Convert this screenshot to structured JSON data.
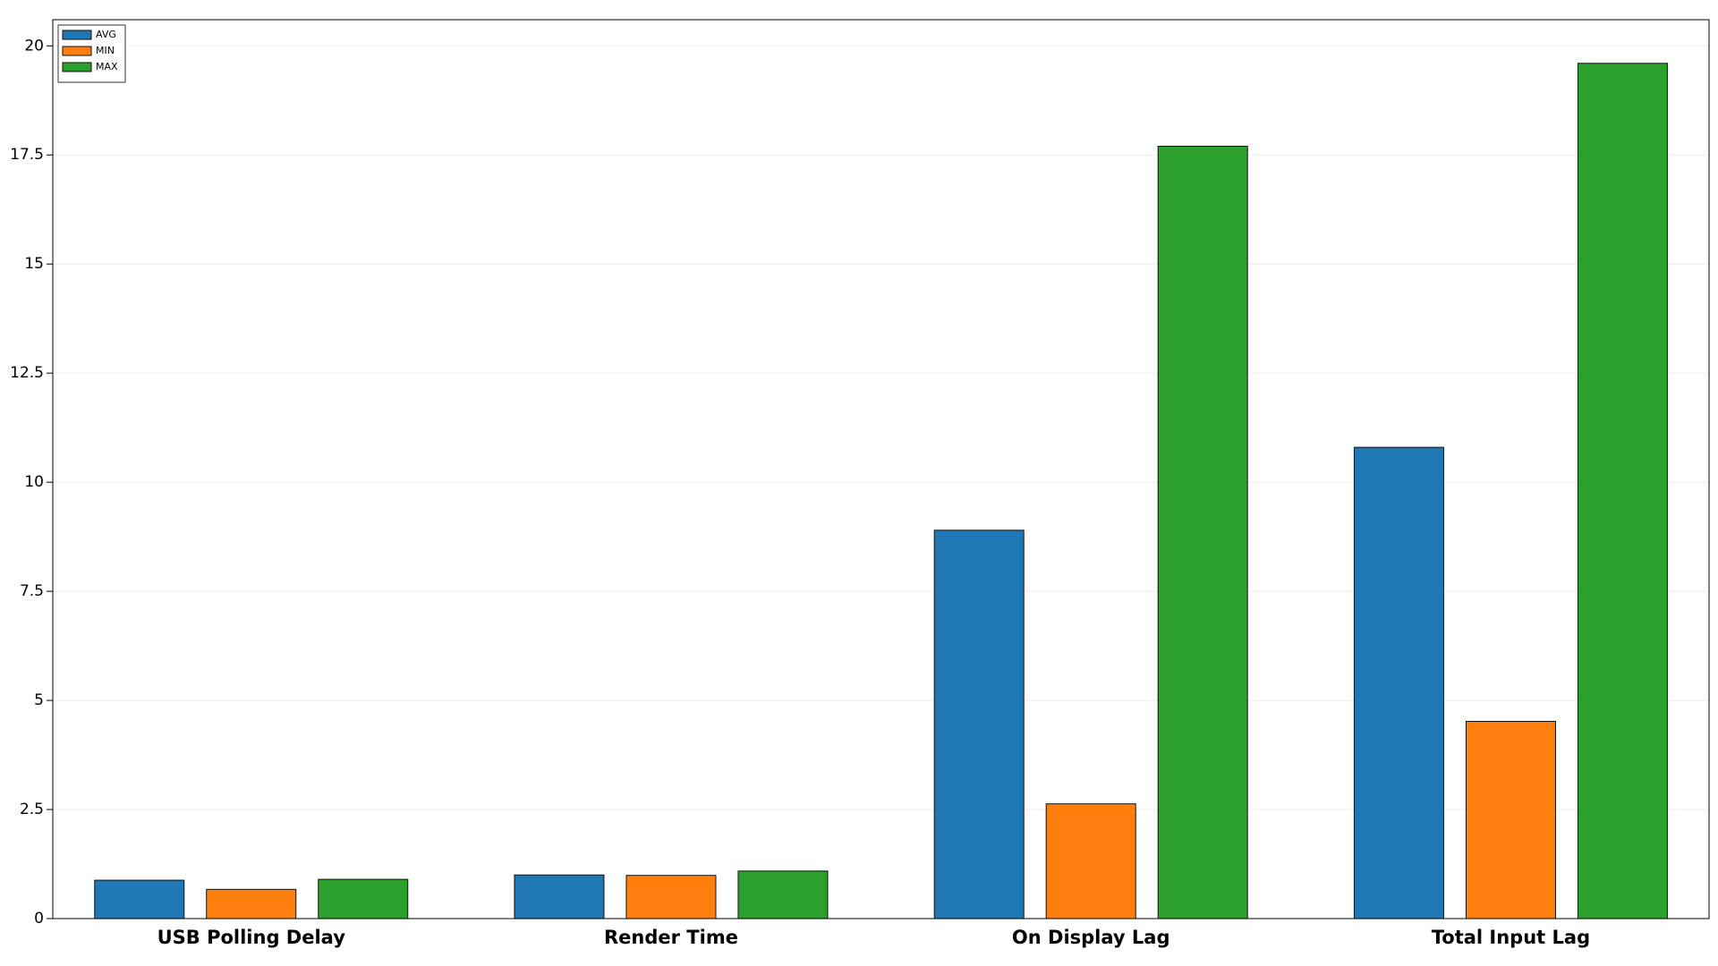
{
  "chart_data": {
    "type": "bar",
    "categories": [
      "USB Polling Delay",
      "Render Time",
      "On Display Lag",
      "Total Input Lag"
    ],
    "series": [
      {
        "name": "AVG",
        "color": "#1f77b4",
        "values": [
          0.88,
          1.0,
          8.9,
          10.8
        ]
      },
      {
        "name": "MIN",
        "color": "#ff7f0e",
        "values": [
          0.67,
          0.99,
          2.63,
          4.52
        ]
      },
      {
        "name": "MAX",
        "color": "#2ca02c",
        "values": [
          0.9,
          1.09,
          17.7,
          19.6
        ]
      }
    ],
    "ylim": [
      0,
      20.6
    ],
    "yticks": [
      0,
      2.5,
      5,
      7.5,
      10,
      12.5,
      15,
      17.5,
      20
    ],
    "grid": true,
    "legend": "upper-left"
  }
}
